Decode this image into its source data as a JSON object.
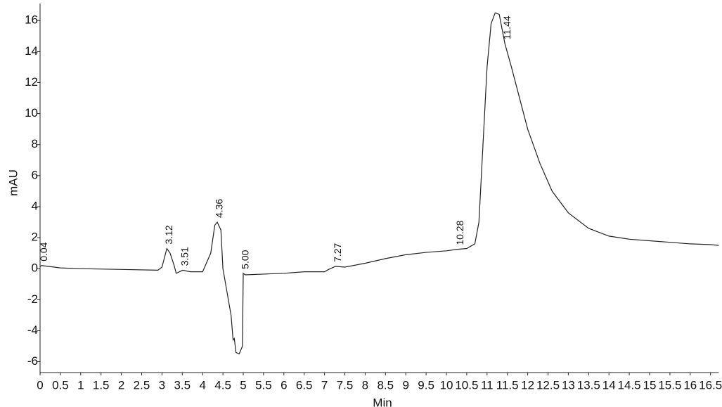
{
  "chart_data": {
    "type": "line",
    "x_label": "Min",
    "y_label": "mAU",
    "color": "#222",
    "x": [
      0,
      0.04,
      0.5,
      1,
      2,
      2.9,
      3.0,
      3.12,
      3.2,
      3.3,
      3.35,
      3.51,
      3.7,
      4.0,
      4.2,
      4.3,
      4.36,
      4.45,
      4.5,
      4.6,
      4.7,
      4.75,
      4.78,
      4.82,
      4.9,
      4.98,
      5.0,
      5.05,
      5.5,
      6,
      6.5,
      7.0,
      7.1,
      7.27,
      7.5,
      8,
      8.5,
      9,
      9.5,
      10,
      10.28,
      10.5,
      10.7,
      10.8,
      10.9,
      11.0,
      11.1,
      11.2,
      11.3,
      11.44,
      11.6,
      11.8,
      12,
      12.3,
      12.6,
      13,
      13.5,
      14,
      14.5,
      15,
      15.5,
      16,
      16.5,
      16.7
    ],
    "values": [
      0.15,
      0.2,
      0.05,
      0,
      -0.05,
      -0.1,
      0.1,
      1.3,
      1.0,
      0.2,
      -0.3,
      -0.1,
      -0.2,
      -0.2,
      1.0,
      2.8,
      3.0,
      2.5,
      0.0,
      -1.5,
      -3,
      -4.6,
      -4.5,
      -5.4,
      -5.5,
      -5.0,
      -0.3,
      -0.4,
      -0.35,
      -0.3,
      -0.2,
      -0.2,
      -0.05,
      0.15,
      0.1,
      0.35,
      0.65,
      0.9,
      1.05,
      1.15,
      1.25,
      1.3,
      1.6,
      3,
      8,
      13,
      15.8,
      16.5,
      16.4,
      14.5,
      13,
      11,
      9,
      6.8,
      5.0,
      3.6,
      2.6,
      2.1,
      1.9,
      1.8,
      1.7,
      1.6,
      1.55,
      1.5
    ],
    "peaks": [
      {
        "label": "0.04",
        "x": 0.04,
        "y": 0.2
      },
      {
        "label": "3.12",
        "x": 3.12,
        "y": 1.3
      },
      {
        "label": "3.51",
        "x": 3.51,
        "y": -0.1
      },
      {
        "label": "4.36",
        "x": 4.36,
        "y": 3.0
      },
      {
        "label": "5.00",
        "x": 5.0,
        "y": -0.3
      },
      {
        "label": "7.27",
        "x": 7.27,
        "y": 0.15
      },
      {
        "label": "10.28",
        "x": 10.28,
        "y": 1.25
      },
      {
        "label": "11.44",
        "x": 11.44,
        "y": 14.5
      }
    ],
    "xlim": [
      0,
      16.7
    ],
    "ylim": [
      -6.7,
      17.1
    ],
    "xticks": [
      0,
      0.5,
      1,
      1.5,
      2,
      2.5,
      3,
      3.5,
      4,
      4.5,
      5,
      5.5,
      6,
      6.5,
      7,
      7.5,
      8,
      8.5,
      9,
      9.5,
      10,
      10.5,
      11,
      11.5,
      12,
      12.5,
      13,
      13.5,
      14,
      14.5,
      15,
      15.5,
      16,
      16.5
    ],
    "yticks": [
      -6,
      -4,
      -2,
      0,
      2,
      4,
      6,
      8,
      10,
      12,
      14,
      16
    ]
  }
}
